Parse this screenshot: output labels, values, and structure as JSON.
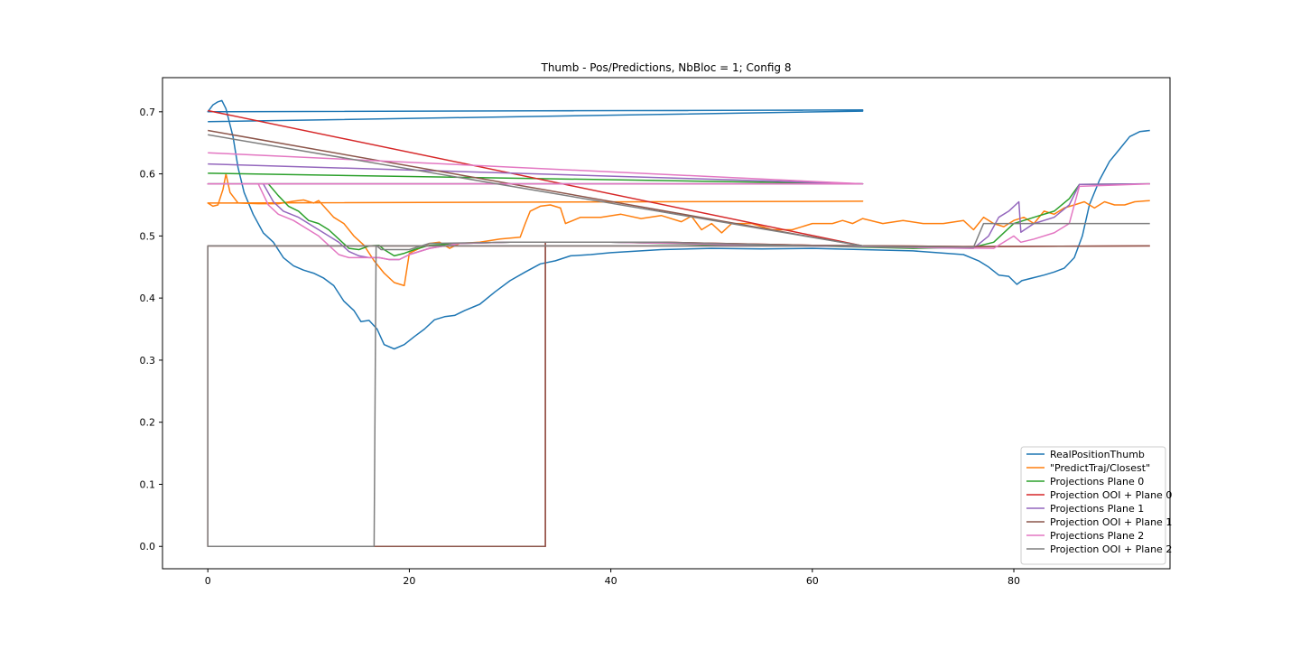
{
  "chart_data": {
    "type": "line",
    "title": "Thumb - Pos/Predictions, NbBloc = 1; Config 8",
    "xlabel": "",
    "ylabel": "",
    "xlim": [
      -4.5,
      95.5
    ],
    "ylim": [
      -0.036,
      0.755
    ],
    "xticks": [
      0,
      20,
      40,
      60,
      80
    ],
    "yticks": [
      0.0,
      0.1,
      0.2,
      0.3,
      0.4,
      0.5,
      0.6,
      0.7
    ],
    "ytick_labels": [
      "0.0",
      "0.1",
      "0.2",
      "0.3",
      "0.4",
      "0.5",
      "0.6",
      "0.7"
    ],
    "grid": false,
    "legend_position": "lower-right",
    "series": [
      {
        "name": "RealPositionThumb",
        "color": "#1f77b4",
        "points": [
          [
            0,
            0.684
          ],
          [
            65,
            0.701
          ],
          [
            65,
            0.703
          ],
          [
            0,
            0.7
          ],
          [
            0.5,
            0.711
          ],
          [
            1,
            0.716
          ],
          [
            1.4,
            0.718
          ],
          [
            1.8,
            0.705
          ],
          [
            2.5,
            0.66
          ],
          [
            3,
            0.61
          ],
          [
            3.6,
            0.57
          ],
          [
            4.5,
            0.535
          ],
          [
            5.5,
            0.505
          ],
          [
            6.5,
            0.49
          ],
          [
            7.5,
            0.465
          ],
          [
            8.5,
            0.452
          ],
          [
            9.5,
            0.445
          ],
          [
            10.5,
            0.44
          ],
          [
            11.5,
            0.432
          ],
          [
            12.5,
            0.42
          ],
          [
            13.5,
            0.395
          ],
          [
            14.5,
            0.38
          ],
          [
            15.2,
            0.362
          ],
          [
            16,
            0.364
          ],
          [
            16.8,
            0.35
          ],
          [
            17.5,
            0.325
          ],
          [
            18.5,
            0.318
          ],
          [
            19.5,
            0.325
          ],
          [
            20.5,
            0.338
          ],
          [
            21.5,
            0.35
          ],
          [
            22.5,
            0.365
          ],
          [
            23.5,
            0.37
          ],
          [
            24.5,
            0.372
          ],
          [
            25.5,
            0.38
          ],
          [
            27,
            0.39
          ],
          [
            28.5,
            0.41
          ],
          [
            30,
            0.428
          ],
          [
            31.5,
            0.442
          ],
          [
            33,
            0.455
          ],
          [
            34.5,
            0.46
          ],
          [
            36,
            0.468
          ],
          [
            38,
            0.47
          ],
          [
            40,
            0.473
          ],
          [
            45,
            0.478
          ],
          [
            50,
            0.48
          ],
          [
            55,
            0.479
          ],
          [
            60,
            0.48
          ],
          [
            65,
            0.478
          ],
          [
            70,
            0.476
          ],
          [
            75,
            0.47
          ],
          [
            76.5,
            0.46
          ],
          [
            77.5,
            0.45
          ],
          [
            78.5,
            0.437
          ],
          [
            79.5,
            0.435
          ],
          [
            80.3,
            0.422
          ],
          [
            80.8,
            0.428
          ],
          [
            82,
            0.433
          ],
          [
            83,
            0.437
          ],
          [
            84,
            0.442
          ],
          [
            85,
            0.448
          ],
          [
            86,
            0.465
          ],
          [
            86.8,
            0.5
          ],
          [
            87.5,
            0.55
          ],
          [
            88.5,
            0.59
          ],
          [
            89.5,
            0.62
          ],
          [
            90.5,
            0.64
          ],
          [
            91.5,
            0.66
          ],
          [
            92.5,
            0.668
          ],
          [
            93.5,
            0.67
          ]
        ]
      },
      {
        "name": "\"PredictTraj/Closest\"",
        "color": "#ff7f0e",
        "points": [
          [
            0,
            0.553
          ],
          [
            65,
            0.556
          ],
          [
            65,
            0.556
          ],
          [
            0,
            0.553
          ],
          [
            0.5,
            0.548
          ],
          [
            1,
            0.55
          ],
          [
            1.5,
            0.575
          ],
          [
            1.8,
            0.6
          ],
          [
            2.2,
            0.57
          ],
          [
            3,
            0.553
          ],
          [
            5,
            0.552
          ],
          [
            7,
            0.552
          ],
          [
            8.5,
            0.556
          ],
          [
            9.5,
            0.558
          ],
          [
            10.5,
            0.553
          ],
          [
            11,
            0.557
          ],
          [
            11.5,
            0.548
          ],
          [
            12.5,
            0.53
          ],
          [
            13.5,
            0.52
          ],
          [
            14.5,
            0.5
          ],
          [
            15.5,
            0.485
          ],
          [
            16.5,
            0.46
          ],
          [
            17.5,
            0.44
          ],
          [
            18.5,
            0.425
          ],
          [
            19.5,
            0.42
          ],
          [
            20,
            0.472
          ],
          [
            21,
            0.48
          ],
          [
            22,
            0.488
          ],
          [
            23,
            0.49
          ],
          [
            24,
            0.48
          ],
          [
            25,
            0.488
          ],
          [
            27,
            0.49
          ],
          [
            29,
            0.495
          ],
          [
            31,
            0.498
          ],
          [
            31.5,
            0.52
          ],
          [
            32,
            0.54
          ],
          [
            33,
            0.548
          ],
          [
            34,
            0.55
          ],
          [
            35,
            0.545
          ],
          [
            35.5,
            0.52
          ],
          [
            37,
            0.53
          ],
          [
            39,
            0.53
          ],
          [
            41,
            0.535
          ],
          [
            43,
            0.528
          ],
          [
            45,
            0.533
          ],
          [
            47,
            0.523
          ],
          [
            48,
            0.532
          ],
          [
            49,
            0.51
          ],
          [
            50,
            0.52
          ],
          [
            51,
            0.505
          ],
          [
            52,
            0.52
          ],
          [
            54,
            0.52
          ],
          [
            56,
            0.51
          ],
          [
            58,
            0.51
          ],
          [
            60,
            0.52
          ],
          [
            62,
            0.52
          ],
          [
            63,
            0.525
          ],
          [
            64,
            0.52
          ],
          [
            65,
            0.528
          ],
          [
            67,
            0.52
          ],
          [
            69,
            0.525
          ],
          [
            71,
            0.52
          ],
          [
            73,
            0.52
          ],
          [
            75,
            0.525
          ],
          [
            76,
            0.51
          ],
          [
            77,
            0.53
          ],
          [
            78,
            0.52
          ],
          [
            79,
            0.515
          ],
          [
            80,
            0.525
          ],
          [
            81,
            0.53
          ],
          [
            82,
            0.52
          ],
          [
            83,
            0.54
          ],
          [
            84,
            0.535
          ],
          [
            85,
            0.545
          ],
          [
            86,
            0.55
          ],
          [
            87,
            0.555
          ],
          [
            88,
            0.545
          ],
          [
            89,
            0.555
          ],
          [
            90,
            0.55
          ],
          [
            91,
            0.55
          ],
          [
            92,
            0.555
          ],
          [
            93.5,
            0.557
          ]
        ]
      },
      {
        "name": "Projections Plane 0",
        "color": "#2ca02c",
        "points": [
          [
            0,
            0.601
          ],
          [
            65,
            0.584
          ],
          [
            65,
            0.584
          ],
          [
            0,
            0.584
          ],
          [
            6,
            0.584
          ],
          [
            7,
            0.565
          ],
          [
            8,
            0.548
          ],
          [
            9,
            0.54
          ],
          [
            10,
            0.525
          ],
          [
            11,
            0.52
          ],
          [
            12,
            0.51
          ],
          [
            13,
            0.495
          ],
          [
            14,
            0.48
          ],
          [
            15,
            0.478
          ],
          [
            16,
            0.484
          ],
          [
            17,
            0.485
          ],
          [
            17.5,
            0.478
          ],
          [
            18.5,
            0.468
          ],
          [
            19.5,
            0.472
          ],
          [
            20.5,
            0.478
          ],
          [
            22,
            0.485
          ],
          [
            25,
            0.488
          ],
          [
            30,
            0.49
          ],
          [
            40,
            0.49
          ],
          [
            50,
            0.486
          ],
          [
            60,
            0.484
          ],
          [
            70,
            0.48
          ],
          [
            76,
            0.482
          ],
          [
            78,
            0.49
          ],
          [
            80,
            0.52
          ],
          [
            82,
            0.53
          ],
          [
            84,
            0.54
          ],
          [
            85.5,
            0.56
          ],
          [
            86.5,
            0.583
          ],
          [
            93.5,
            0.584
          ]
        ]
      },
      {
        "name": "Projection OOI + Plane 0",
        "color": "#d62728",
        "points": [
          [
            0,
            0.702
          ],
          [
            65,
            0.484
          ],
          [
            65,
            0.484
          ],
          [
            0,
            0.484
          ],
          [
            0,
            0.0
          ],
          [
            33.5,
            0.0
          ],
          [
            33.5,
            0.49
          ],
          [
            45,
            0.49
          ],
          [
            60,
            0.485
          ],
          [
            75,
            0.483
          ],
          [
            93.5,
            0.484
          ]
        ]
      },
      {
        "name": "Projections Plane 1",
        "color": "#9467bd",
        "points": [
          [
            0,
            0.616
          ],
          [
            65,
            0.584
          ],
          [
            65,
            0.584
          ],
          [
            0,
            0.584
          ],
          [
            5.5,
            0.584
          ],
          [
            6.5,
            0.555
          ],
          [
            7.5,
            0.54
          ],
          [
            9,
            0.53
          ],
          [
            10,
            0.52
          ],
          [
            11,
            0.51
          ],
          [
            12,
            0.5
          ],
          [
            13,
            0.49
          ],
          [
            14,
            0.475
          ],
          [
            15,
            0.468
          ],
          [
            16,
            0.465
          ],
          [
            17,
            0.465
          ],
          [
            18,
            0.462
          ],
          [
            19,
            0.462
          ],
          [
            20,
            0.47
          ],
          [
            22,
            0.48
          ],
          [
            25,
            0.488
          ],
          [
            30,
            0.49
          ],
          [
            40,
            0.49
          ],
          [
            60,
            0.484
          ],
          [
            76,
            0.48
          ],
          [
            77.5,
            0.5
          ],
          [
            78.5,
            0.53
          ],
          [
            79.5,
            0.54
          ],
          [
            80.5,
            0.555
          ],
          [
            80.7,
            0.506
          ],
          [
            82,
            0.52
          ],
          [
            84,
            0.53
          ],
          [
            85.5,
            0.55
          ],
          [
            86.5,
            0.583
          ],
          [
            93.5,
            0.584
          ]
        ]
      },
      {
        "name": "Projection OOI + Plane 1",
        "color": "#8c564b",
        "points": [
          [
            0,
            0.67
          ],
          [
            65,
            0.484
          ],
          [
            65,
            0.484
          ],
          [
            0,
            0.484
          ],
          [
            0,
            0.0
          ],
          [
            33.5,
            0.0
          ],
          [
            33.5,
            0.49
          ],
          [
            45,
            0.49
          ],
          [
            60,
            0.485
          ],
          [
            75,
            0.483
          ],
          [
            93.5,
            0.484
          ]
        ]
      },
      {
        "name": "Projections Plane 2",
        "color": "#e377c2",
        "points": [
          [
            0,
            0.634
          ],
          [
            65,
            0.584
          ],
          [
            65,
            0.584
          ],
          [
            0,
            0.584
          ],
          [
            5,
            0.584
          ],
          [
            6,
            0.55
          ],
          [
            7,
            0.535
          ],
          [
            8.5,
            0.525
          ],
          [
            10,
            0.51
          ],
          [
            11,
            0.5
          ],
          [
            12,
            0.485
          ],
          [
            13,
            0.47
          ],
          [
            14,
            0.465
          ],
          [
            16,
            0.465
          ],
          [
            17,
            0.465
          ],
          [
            18,
            0.462
          ],
          [
            19,
            0.462
          ],
          [
            20,
            0.47
          ],
          [
            22,
            0.48
          ],
          [
            25,
            0.488
          ],
          [
            30,
            0.49
          ],
          [
            40,
            0.49
          ],
          [
            60,
            0.484
          ],
          [
            78,
            0.48
          ],
          [
            80,
            0.5
          ],
          [
            80.7,
            0.49
          ],
          [
            82,
            0.495
          ],
          [
            84,
            0.505
          ],
          [
            85.5,
            0.52
          ],
          [
            86.5,
            0.58
          ],
          [
            93.5,
            0.584
          ]
        ]
      },
      {
        "name": "Projection OOI + Plane 2",
        "color": "#7f7f7f",
        "points": [
          [
            0,
            0.663
          ],
          [
            65,
            0.484
          ],
          [
            65,
            0.484
          ],
          [
            0,
            0.484
          ],
          [
            0,
            0.0
          ],
          [
            16.5,
            0.0
          ],
          [
            16.7,
            0.485
          ],
          [
            17.2,
            0.478
          ],
          [
            20,
            0.478
          ],
          [
            22,
            0.488
          ],
          [
            30,
            0.49
          ],
          [
            45,
            0.49
          ],
          [
            60,
            0.484
          ],
          [
            76,
            0.482
          ],
          [
            77,
            0.52
          ],
          [
            93.5,
            0.52
          ]
        ]
      }
    ]
  }
}
